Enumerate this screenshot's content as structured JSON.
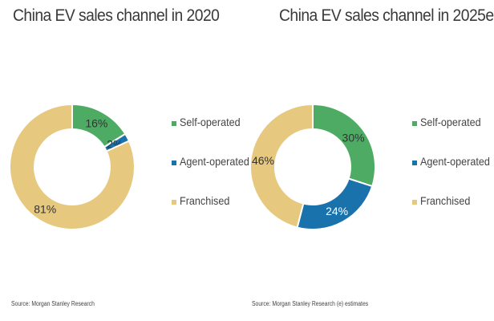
{
  "chart_data": [
    {
      "type": "pie",
      "title": "China EV sales channel in 2020",
      "categories": [
        "Self-operated",
        "Agent-operated",
        "Franchised"
      ],
      "values": [
        16,
        2,
        81
      ],
      "value_labels": [
        "16%",
        "2%",
        "81%"
      ],
      "colors": [
        "#4eab64",
        "#1a72ad",
        "#e6c87e"
      ],
      "legend": "right",
      "source": "Source: Morgan Stanley Research"
    },
    {
      "type": "pie",
      "title": "China EV sales channel in 2025e",
      "categories": [
        "Self-operated",
        "Agent-operated",
        "Franchised"
      ],
      "values": [
        30,
        24,
        46
      ],
      "value_labels": [
        "30%",
        "24%",
        "46%"
      ],
      "colors": [
        "#4eab64",
        "#1a72ad",
        "#e6c87e"
      ],
      "legend": "right",
      "source": "Source: Morgan Stanley Research (e) estimates"
    }
  ]
}
